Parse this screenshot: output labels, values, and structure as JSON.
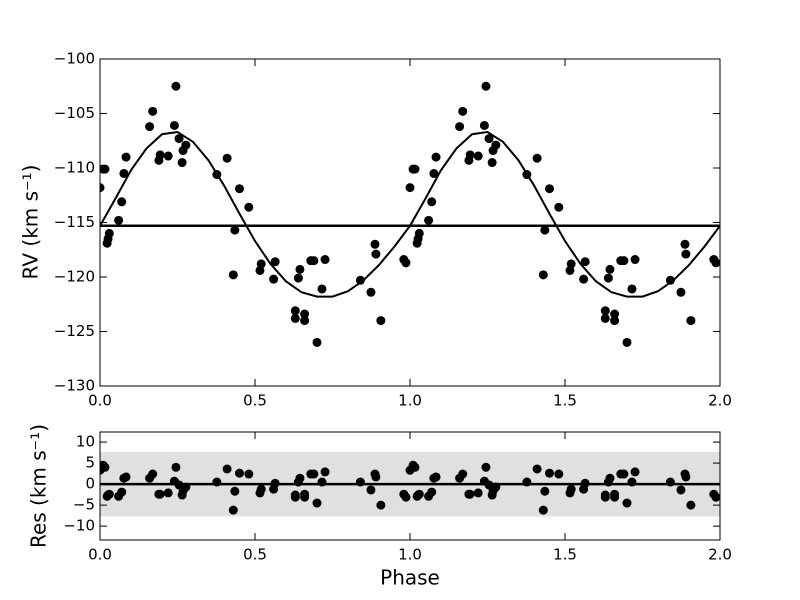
{
  "chart_data": [
    {
      "type": "scatter",
      "ylabel": "RV (km s⁻¹)",
      "xlim": [
        0,
        2
      ],
      "ylim": [
        -130,
        -100
      ],
      "xticks": [
        {
          "value": 0,
          "label": "0.0"
        },
        {
          "value": 0.5,
          "label": "0.5"
        },
        {
          "value": 1,
          "label": "1.0"
        },
        {
          "value": 1.5,
          "label": "1.5"
        },
        {
          "value": 2,
          "label": "2.0"
        }
      ],
      "yticks": [
        {
          "value": -130,
          "label": "−130"
        },
        {
          "value": -125,
          "label": "−125"
        },
        {
          "value": -120,
          "label": "−120"
        },
        {
          "value": -115,
          "label": "−115"
        },
        {
          "value": -110,
          "label": "−110"
        },
        {
          "value": -105,
          "label": "−105"
        },
        {
          "value": -100,
          "label": "−100"
        }
      ],
      "color": "#000000",
      "x": [
        0.0,
        0.01,
        0.016,
        0.023,
        0.026,
        0.03,
        0.06,
        0.07,
        0.077,
        0.084,
        0.16,
        0.17,
        0.19,
        0.194,
        0.22,
        0.24,
        0.245,
        0.255,
        0.265,
        0.268,
        0.277,
        0.377,
        0.41,
        0.43,
        0.435,
        0.45,
        0.48,
        0.516,
        0.52,
        0.56,
        0.565,
        0.63,
        0.63,
        0.64,
        0.645,
        0.66,
        0.66,
        0.68,
        0.69,
        0.7,
        0.716,
        0.726,
        0.84,
        0.874,
        0.887,
        0.89,
        0.906,
        0.98,
        0.987,
        1.0,
        1.01,
        1.016,
        1.023,
        1.026,
        1.03,
        1.06,
        1.07,
        1.077,
        1.084,
        1.16,
        1.17,
        1.19,
        1.194,
        1.22,
        1.24,
        1.245,
        1.255,
        1.265,
        1.268,
        1.277,
        1.377,
        1.41,
        1.43,
        1.435,
        1.45,
        1.48,
        1.516,
        1.52,
        1.56,
        1.565,
        1.63,
        1.63,
        1.64,
        1.645,
        1.66,
        1.66,
        1.68,
        1.69,
        1.7,
        1.716,
        1.726,
        1.84,
        1.874,
        1.887,
        1.89,
        1.906,
        1.98,
        1.987
      ],
      "values": [
        -111.8,
        -110.1,
        -110.1,
        -116.9,
        -116.5,
        -116.0,
        -114.8,
        -113.1,
        -110.5,
        -109.0,
        -106.2,
        -104.8,
        -109.3,
        -108.8,
        -108.9,
        -106.1,
        -102.5,
        -107.3,
        -109.5,
        -108.4,
        -107.9,
        -110.6,
        -109.1,
        -119.8,
        -115.7,
        -111.9,
        -113.6,
        -119.4,
        -118.8,
        -120.2,
        -118.6,
        -123.1,
        -123.8,
        -120.1,
        -119.3,
        -123.4,
        -124.0,
        -118.5,
        -118.5,
        -126.0,
        -121.1,
        -118.4,
        -120.3,
        -121.4,
        -117.0,
        -117.9,
        -124.0,
        -118.4,
        -118.7,
        -111.8,
        -110.1,
        -110.1,
        -116.9,
        -116.5,
        -116.0,
        -114.8,
        -113.1,
        -110.5,
        -109.0,
        -106.2,
        -104.8,
        -109.3,
        -108.8,
        -108.9,
        -106.1,
        -102.5,
        -107.3,
        -109.5,
        -108.4,
        -107.9,
        -110.6,
        -109.1,
        -119.8,
        -115.7,
        -111.9,
        -113.6,
        -119.4,
        -118.8,
        -120.2,
        -118.6,
        -123.1,
        -123.8,
        -120.1,
        -119.3,
        -123.4,
        -124.0,
        -118.5,
        -118.5,
        -126.0,
        -121.1,
        -118.4,
        -120.3,
        -121.4,
        -117.0,
        -117.9,
        -124.0,
        -118.4,
        -118.7
      ],
      "fit": {
        "x": [
          0,
          0.05,
          0.1,
          0.15,
          0.2,
          0.25,
          0.3,
          0.35,
          0.4,
          0.45,
          0.5,
          0.55,
          0.6,
          0.65,
          0.7,
          0.75,
          0.8,
          0.85,
          0.9,
          0.95,
          1.0,
          1.05,
          1.1,
          1.15,
          1.2,
          1.25,
          1.3,
          1.35,
          1.4,
          1.45,
          1.5,
          1.55,
          1.6,
          1.65,
          1.7,
          1.75,
          1.8,
          1.85,
          1.9,
          1.95,
          2.0
        ],
        "values": [
          -115.3,
          -112.8,
          -110.2,
          -108.2,
          -106.9,
          -106.7,
          -107.6,
          -109.3,
          -111.6,
          -114.2,
          -116.7,
          -118.8,
          -120.4,
          -121.4,
          -121.8,
          -121.8,
          -121.3,
          -120.3,
          -118.9,
          -117.2,
          -115.3,
          -112.8,
          -110.2,
          -108.2,
          -106.9,
          -106.7,
          -107.6,
          -109.3,
          -111.6,
          -114.2,
          -116.7,
          -118.8,
          -120.4,
          -121.4,
          -121.8,
          -121.8,
          -121.3,
          -120.3,
          -118.9,
          -117.2,
          -115.3
        ]
      },
      "hline": -115.3
    },
    {
      "type": "scatter",
      "ylabel": "Res (km s⁻¹)",
      "xlabel": "Phase",
      "xlim": [
        0,
        2
      ],
      "ylim": [
        -13.3,
        12.4
      ],
      "xticks": [
        {
          "value": 0,
          "label": "0.0"
        },
        {
          "value": 0.5,
          "label": "0.5"
        },
        {
          "value": 1,
          "label": "1.0"
        },
        {
          "value": 1.5,
          "label": "1.5"
        },
        {
          "value": 2,
          "label": "2.0"
        }
      ],
      "yticks": [
        {
          "value": -10,
          "label": "−10"
        },
        {
          "value": -5,
          "label": "−5"
        },
        0,
        5,
        10
      ],
      "color": "#000000",
      "x": [
        0.0,
        0.01,
        0.016,
        0.023,
        0.026,
        0.03,
        0.06,
        0.07,
        0.077,
        0.084,
        0.16,
        0.17,
        0.19,
        0.194,
        0.22,
        0.24,
        0.245,
        0.255,
        0.265,
        0.268,
        0.277,
        0.377,
        0.41,
        0.43,
        0.435,
        0.45,
        0.48,
        0.516,
        0.52,
        0.56,
        0.565,
        0.63,
        0.63,
        0.64,
        0.645,
        0.66,
        0.66,
        0.68,
        0.69,
        0.7,
        0.716,
        0.726,
        0.84,
        0.874,
        0.887,
        0.89,
        0.906,
        0.98,
        0.987,
        1.0,
        1.01,
        1.016,
        1.023,
        1.026,
        1.03,
        1.06,
        1.07,
        1.077,
        1.084,
        1.16,
        1.17,
        1.19,
        1.194,
        1.22,
        1.24,
        1.245,
        1.255,
        1.265,
        1.268,
        1.277,
        1.377,
        1.41,
        1.43,
        1.435,
        1.45,
        1.48,
        1.516,
        1.52,
        1.56,
        1.565,
        1.63,
        1.63,
        1.64,
        1.645,
        1.66,
        1.66,
        1.68,
        1.69,
        1.7,
        1.716,
        1.726,
        1.84,
        1.874,
        1.887,
        1.89,
        1.906,
        1.98,
        1.987
      ],
      "values": [
        3.3,
        4.5,
        4.0,
        -2.9,
        -2.6,
        -2.4,
        -2.9,
        -1.9,
        1.4,
        1.7,
        1.4,
        2.4,
        -2.4,
        -2.4,
        -2.1,
        0.7,
        4.0,
        -0.2,
        -2.6,
        -1.6,
        -0.7,
        0.5,
        3.6,
        -6.2,
        -1.7,
        2.6,
        2.4,
        -2.1,
        -1.2,
        -1.2,
        0.2,
        -3.1,
        -2.6,
        0.5,
        1.4,
        -2.4,
        -3.1,
        2.4,
        2.4,
        -4.5,
        0.5,
        2.9,
        0.5,
        -1.4,
        2.4,
        1.7,
        -5.0,
        -2.4,
        -3.1,
        3.3,
        4.5,
        4.0,
        -2.9,
        -2.6,
        -2.4,
        -2.9,
        -1.9,
        1.4,
        1.7,
        1.4,
        2.4,
        -2.4,
        -2.4,
        -2.1,
        0.7,
        4.0,
        -0.2,
        -2.6,
        -1.6,
        -0.7,
        0.5,
        3.6,
        -6.2,
        -1.7,
        2.6,
        2.4,
        -2.1,
        -1.2,
        -1.2,
        0.2,
        -3.1,
        -2.6,
        0.5,
        1.4,
        -2.4,
        -3.1,
        2.4,
        2.4,
        -4.5,
        0.5,
        2.9,
        0.5,
        -1.4,
        2.4,
        1.7,
        -5.0,
        -2.4,
        -3.1
      ],
      "band": [
        -7.7,
        7.7
      ],
      "band_color": "#e0e0e0",
      "hline": 0
    }
  ]
}
